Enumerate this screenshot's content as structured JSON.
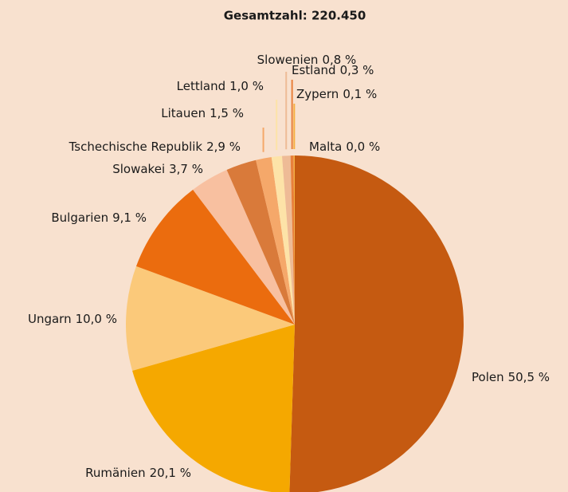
{
  "chart_data": {
    "type": "pie",
    "title": "Gesamtzahl: 220.450",
    "categories": [
      "Polen",
      "Rumänien",
      "Ungarn",
      "Bulgarien",
      "Slowakei",
      "Tschechische Republik",
      "Litauen",
      "Lettland",
      "Slowenien",
      "Estland",
      "Zypern",
      "Malta"
    ],
    "values": [
      50.5,
      20.1,
      10.0,
      9.1,
      3.7,
      2.9,
      1.5,
      1.0,
      0.8,
      0.3,
      0.1,
      0.0
    ],
    "value_labels": [
      "50,5 %",
      "20,1 %",
      "10,0 %",
      "9,1 %",
      "3,7 %",
      "2,9 %",
      "1,5 %",
      "1,0 %",
      "0,8 %",
      "0,3 %",
      "0,1 %",
      "0,0 %"
    ],
    "colors": [
      "#c55a11",
      "#f5a800",
      "#fbc97a",
      "#eb6c0e",
      "#f8c0a0",
      "#d97a3a",
      "#f5a86a",
      "#fde3a8",
      "#eebb96",
      "#e8803a",
      "#f5b040",
      "#f0a050"
    ]
  }
}
